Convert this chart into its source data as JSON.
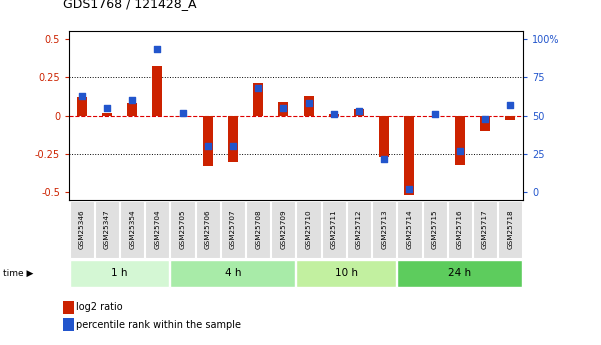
{
  "title": "GDS1768 / 121428_A",
  "samples": [
    "GSM25346",
    "GSM25347",
    "GSM25354",
    "GSM25704",
    "GSM25705",
    "GSM25706",
    "GSM25707",
    "GSM25708",
    "GSM25709",
    "GSM25710",
    "GSM25711",
    "GSM25712",
    "GSM25713",
    "GSM25714",
    "GSM25715",
    "GSM25716",
    "GSM25717",
    "GSM25718"
  ],
  "log2_ratio": [
    0.12,
    0.02,
    0.08,
    0.32,
    -0.005,
    -0.33,
    -0.3,
    0.21,
    0.09,
    0.13,
    0.01,
    0.04,
    -0.27,
    -0.52,
    -0.005,
    -0.32,
    -0.1,
    -0.03
  ],
  "percentile_rank": [
    63,
    55,
    60,
    93,
    52,
    30,
    30,
    68,
    55,
    58,
    51,
    53,
    22,
    2,
    51,
    27,
    48,
    57
  ],
  "groups": [
    {
      "label": "1 h",
      "start": 0,
      "end": 4,
      "color": "#d4f7d4"
    },
    {
      "label": "4 h",
      "start": 4,
      "end": 9,
      "color": "#a8eba8"
    },
    {
      "label": "10 h",
      "start": 9,
      "end": 13,
      "color": "#c2f0a0"
    },
    {
      "label": "24 h",
      "start": 13,
      "end": 18,
      "color": "#5dcc5d"
    }
  ],
  "bar_color": "#cc2200",
  "dot_color": "#2255cc",
  "hline_color": "#dd0000",
  "ylim": [
    -0.55,
    0.55
  ],
  "yticks_left": [
    -0.5,
    -0.25,
    0.0,
    0.25,
    0.5
  ],
  "yticks_right": [
    0,
    25,
    50,
    75,
    100
  ],
  "dotted_hlines": [
    -0.25,
    0.25
  ],
  "bg_color": "#ffffff"
}
